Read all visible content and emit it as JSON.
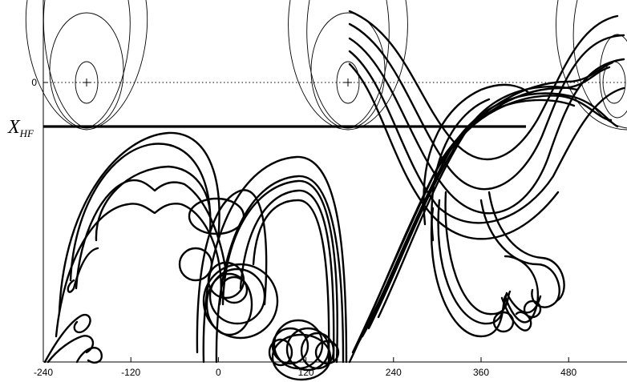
{
  "chart_data": {
    "type": "line",
    "xlim": [
      -240,
      560
    ],
    "x_ticks": [
      -240,
      -120,
      0,
      120,
      240,
      360,
      480
    ],
    "x_tick_labels": [
      "-240",
      "-120",
      "0",
      "120",
      "240",
      "360",
      "480"
    ],
    "y_ticks": [
      0
    ],
    "y_tick_labels": [
      "0"
    ],
    "zero_reference": {
      "style": "dotted",
      "y": 0
    },
    "threshold": {
      "label": "X",
      "subscript": "HF",
      "x_range": [
        -240,
        350
      ]
    },
    "potential_minima_x": [
      -180,
      180
    ],
    "grid": false,
    "legend": "none"
  },
  "colors": {
    "ink": "#000000",
    "contour": "#000000",
    "background": "#ffffff"
  }
}
